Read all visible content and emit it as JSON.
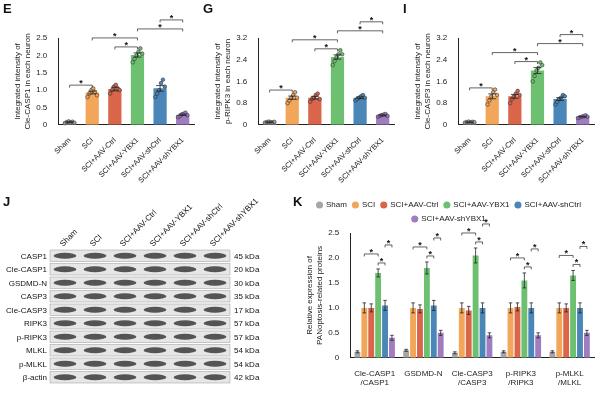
{
  "chart_data": [
    {
      "type": "bar",
      "title": "E",
      "y_label": "Integrated intensity of\nCle-CASP1 in each neuron",
      "categories": [
        "Sham",
        "SCI",
        "SCI+AAV-Ctrl",
        "SCI+AAV-YBX1",
        "SCI+AAV-shCtrl",
        "SCI+AAV-shYBX1"
      ],
      "values": [
        0.08,
        0.93,
        1.03,
        2.01,
        1.05,
        0.29
      ],
      "errors": [
        0.01,
        0.04,
        0.05,
        0.06,
        0.08,
        0.02
      ],
      "points": [
        [
          0.05,
          0.08,
          0.1,
          0.07,
          0.09,
          0.06
        ],
        [
          0.8,
          0.9,
          1.0,
          1.05,
          0.95,
          0.85
        ],
        [
          0.9,
          1.0,
          1.1,
          1.15,
          1.05,
          1.0
        ],
        [
          1.8,
          1.9,
          2.0,
          2.1,
          2.2,
          2.05
        ],
        [
          0.8,
          0.9,
          1.0,
          1.2,
          1.3,
          1.1
        ],
        [
          0.22,
          0.25,
          0.3,
          0.32,
          0.35,
          0.28
        ]
      ],
      "colors": [
        "#a6a6a6",
        "#f2a65a",
        "#d9654b",
        "#6cc070",
        "#4a87b8",
        "#a07cc0"
      ],
      "ylim": [
        0,
        2.5
      ],
      "yticks": [
        0,
        0.5,
        {
          "value": 1,
          "label": "1.0"
        },
        1.5,
        {
          "value": 2,
          "label": "2.0"
        },
        2.5
      ],
      "grid": false,
      "significance": [
        {
          "from": 0,
          "to": 1,
          "label": "*"
        },
        {
          "from": 2,
          "to": 3,
          "label": "*"
        },
        {
          "from": 1,
          "to": 3,
          "label": "*"
        },
        {
          "from": 3,
          "to": 5,
          "label": "*"
        },
        {
          "from": 4,
          "to": 5,
          "label": "*"
        }
      ]
    },
    {
      "type": "bar",
      "title": "G",
      "y_label": "Integrated intensity of\np-RIPK3 in each neuron",
      "categories": [
        "Sham",
        "SCI",
        "SCI+AAV-Ctrl",
        "SCI+AAV-YBX1",
        "SCI+AAV-shCtrl",
        "SCI+AAV-shYBX1"
      ],
      "values": [
        0.1,
        1.0,
        1.0,
        2.5,
        1.0,
        0.35
      ],
      "errors": [
        0.01,
        0.06,
        0.05,
        0.08,
        0.03,
        0.02
      ],
      "points": [
        [
          0.08,
          0.1,
          0.12,
          0.1,
          0.09,
          0.11
        ],
        [
          0.8,
          0.9,
          1.0,
          1.1,
          1.2,
          1.0
        ],
        [
          0.85,
          0.95,
          1.0,
          1.1,
          1.15,
          0.95
        ],
        [
          2.2,
          2.35,
          2.5,
          2.6,
          2.75,
          2.6
        ],
        [
          0.9,
          0.95,
          1.0,
          1.05,
          1.1,
          1.0
        ],
        [
          0.3,
          0.33,
          0.36,
          0.38,
          0.4,
          0.33
        ]
      ],
      "colors": [
        "#a6a6a6",
        "#f2a65a",
        "#d9654b",
        "#6cc070",
        "#4a87b8",
        "#a07cc0"
      ],
      "ylim": [
        0,
        3.2
      ],
      "yticks": [
        0,
        0.8,
        1.6,
        2.4,
        3.2
      ],
      "grid": false,
      "significance": [
        {
          "from": 0,
          "to": 1,
          "label": "*"
        },
        {
          "from": 2,
          "to": 3,
          "label": "*"
        },
        {
          "from": 1,
          "to": 3,
          "label": "*"
        },
        {
          "from": 3,
          "to": 5,
          "label": "*"
        },
        {
          "from": 4,
          "to": 5,
          "label": "*"
        }
      ]
    },
    {
      "type": "bar",
      "title": "I",
      "y_label": "Integrated intensity of\nCle-CASP3 in each neuron",
      "categories": [
        "Sham",
        "SCI",
        "SCI+AAV-Ctrl",
        "SCI+AAV-YBX1",
        "SCI+AAV-shCtrl",
        "SCI+AAV-shYBX1"
      ],
      "values": [
        0.1,
        1.05,
        1.05,
        2.0,
        0.95,
        0.3
      ],
      "errors": [
        0.01,
        0.09,
        0.07,
        0.11,
        0.05,
        0.01
      ],
      "points": [
        [
          0.08,
          0.1,
          0.12,
          0.09,
          0.11,
          0.1
        ],
        [
          0.75,
          0.9,
          1.05,
          1.2,
          1.3,
          1.1
        ],
        [
          0.8,
          0.95,
          1.05,
          1.15,
          1.25,
          1.1
        ],
        [
          1.6,
          1.8,
          2.0,
          2.1,
          2.3,
          2.2
        ],
        [
          0.75,
          0.85,
          0.95,
          1.0,
          1.1,
          1.05
        ],
        [
          0.25,
          0.28,
          0.3,
          0.32,
          0.35,
          0.3
        ]
      ],
      "colors": [
        "#a6a6a6",
        "#f2a65a",
        "#d9654b",
        "#6cc070",
        "#4a87b8",
        "#a07cc0"
      ],
      "ylim": [
        0,
        3.2
      ],
      "yticks": [
        0,
        0.8,
        1.6,
        2.4,
        3.2
      ],
      "grid": false,
      "significance": [
        {
          "from": 0,
          "to": 1,
          "label": "*"
        },
        {
          "from": 2,
          "to": 3,
          "label": "*"
        },
        {
          "from": 1,
          "to": 3,
          "label": "*"
        },
        {
          "from": 3,
          "to": 5,
          "label": "*"
        },
        {
          "from": 4,
          "to": 5,
          "label": "*"
        }
      ]
    },
    {
      "type": "bar",
      "title": "K",
      "y_label": "Relative expression of\nPANoptosis-related proteins",
      "categories": [
        "Cle-CASP1\n/CASP1",
        "GSDMD-N",
        "Cle-CASP3\n/CASP3",
        "p-RIPK3\n/RIPK3",
        "p-MLKL\n/MLKL"
      ],
      "series": [
        {
          "name": "Sham",
          "color": "#a6a6a6",
          "values": [
            0.12,
            0.15,
            0.1,
            0.12,
            0.12
          ],
          "errors": [
            0.02,
            0.02,
            0.02,
            0.02,
            0.02
          ]
        },
        {
          "name": "SCI",
          "color": "#f2a65a",
          "values": [
            1.0,
            1.0,
            1.0,
            1.0,
            1.0
          ],
          "errors": [
            0.1,
            0.1,
            0.1,
            0.1,
            0.1
          ]
        },
        {
          "name": "SCI+AAV-Ctrl",
          "color": "#d9654b",
          "values": [
            1.0,
            0.98,
            0.95,
            1.02,
            1.0
          ],
          "errors": [
            0.08,
            0.08,
            0.08,
            0.08,
            0.08
          ]
        },
        {
          "name": "SCI+AAV-YBX1",
          "color": "#6cc070",
          "values": [
            1.7,
            1.8,
            2.05,
            1.55,
            1.65
          ],
          "errors": [
            0.08,
            0.12,
            0.15,
            0.15,
            0.1
          ]
        },
        {
          "name": "SCI+AAV-shCtrl",
          "color": "#4a87b8",
          "values": [
            1.05,
            1.05,
            1.0,
            1.0,
            1.0
          ],
          "errors": [
            0.1,
            0.1,
            0.1,
            0.1,
            0.1
          ]
        },
        {
          "name": "SCI+AAV-shYBX1",
          "color": "#a07cc0",
          "values": [
            0.4,
            0.5,
            0.45,
            0.45,
            0.5
          ],
          "errors": [
            0.05,
            0.05,
            0.05,
            0.05,
            0.05
          ]
        }
      ],
      "ylim": [
        0,
        2.5
      ],
      "yticks": [
        0,
        0.5,
        {
          "value": 1,
          "label": "1.0"
        },
        1.5,
        {
          "value": 2,
          "label": "2.0"
        },
        2.5
      ],
      "grid": false,
      "legend": "top",
      "significance": [
        {
          "group": 0,
          "from": 3,
          "to": 4,
          "label": "*"
        },
        {
          "group": 0,
          "from": 1,
          "to": 3,
          "label": "*"
        },
        {
          "group": 0,
          "from": 4,
          "to": 5,
          "label": "*"
        },
        {
          "group": 1,
          "from": 3,
          "to": 4,
          "label": "*"
        },
        {
          "group": 1,
          "from": 1,
          "to": 3,
          "label": "*"
        },
        {
          "group": 1,
          "from": 4,
          "to": 5,
          "label": "*"
        },
        {
          "group": 2,
          "from": 3,
          "to": 4,
          "label": "*"
        },
        {
          "group": 2,
          "from": 1,
          "to": 3,
          "label": "*"
        },
        {
          "group": 2,
          "from": 4,
          "to": 5,
          "label": "*"
        },
        {
          "group": 3,
          "from": 3,
          "to": 4,
          "label": "*"
        },
        {
          "group": 3,
          "from": 1,
          "to": 3,
          "label": "*"
        },
        {
          "group": 3,
          "from": 4,
          "to": 5,
          "label": "*"
        },
        {
          "group": 4,
          "from": 3,
          "to": 4,
          "label": "*"
        },
        {
          "group": 4,
          "from": 1,
          "to": 3,
          "label": "*"
        },
        {
          "group": 4,
          "from": 4,
          "to": 5,
          "label": "*"
        }
      ]
    }
  ],
  "blot": {
    "title": "J",
    "lanes": [
      "Sham",
      "SCI",
      "SCI+AAV-Ctrl",
      "SCI+AAV-YBX1",
      "SCI+AAV-shCtrl",
      "SCI+AAV-shYBX1"
    ],
    "rows": [
      {
        "label": "CASP1",
        "kda": "45 kDa"
      },
      {
        "label": "Cle-CASP1",
        "kda": "20 kDa"
      },
      {
        "label": "GSDMD-N",
        "kda": "30 kDa"
      },
      {
        "label": "CASP3",
        "kda": "35 kDa"
      },
      {
        "label": "Cle-CASP3",
        "kda": "17 kDa"
      },
      {
        "label": "RIPK3",
        "kda": "57 kDa"
      },
      {
        "label": "p-RIPK3",
        "kda": "57 kDa"
      },
      {
        "label": "MLKL",
        "kda": "54 kDa"
      },
      {
        "label": "p-MLKL",
        "kda": "54 kDa"
      },
      {
        "label": "β-actin",
        "kda": "42 kDa"
      }
    ]
  }
}
